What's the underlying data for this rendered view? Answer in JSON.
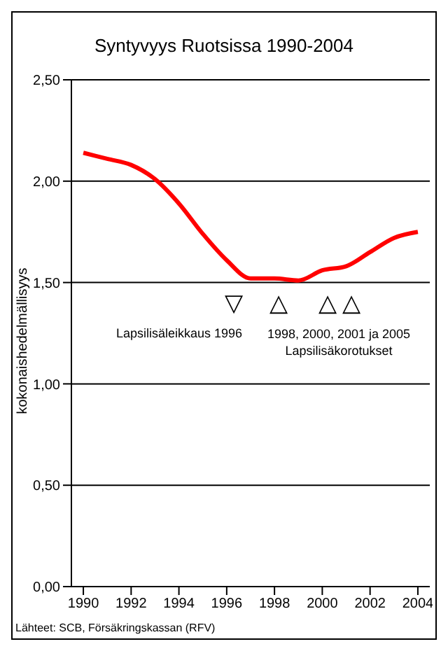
{
  "chart_data": {
    "type": "line",
    "title": "Syntyvyys Ruotsissa 1990-2004",
    "ylabel": "kokonaishedelmällisyys",
    "x": [
      1990,
      1991,
      1992,
      1993,
      1994,
      1995,
      1996,
      1997,
      1998,
      1999,
      2000,
      2001,
      2002,
      2003,
      2004
    ],
    "series": [
      {
        "color": "#ff0000",
        "values": [
          2.14,
          2.11,
          2.08,
          2.01,
          1.89,
          1.74,
          1.61,
          1.52,
          1.52,
          1.51,
          1.56,
          1.58,
          1.65,
          1.72,
          1.75
        ]
      }
    ],
    "xlim": [
      1989.5,
      2004.5
    ],
    "xticks": [
      1990,
      1992,
      1994,
      1996,
      1998,
      2000,
      2002,
      2004
    ],
    "ylim": [
      0,
      2.5
    ],
    "yticks": [
      {
        "value": 0,
        "label": "0,00"
      },
      {
        "value": 0.5,
        "label": "0,50"
      },
      {
        "value": 1,
        "label": "1,00"
      },
      {
        "value": 1.5,
        "label": "1,50"
      },
      {
        "value": 2,
        "label": "2,00"
      },
      {
        "value": 2.5,
        "label": "2,50"
      }
    ],
    "grid": "y",
    "legend": false,
    "marker": "none",
    "line_style": "solid",
    "annotations": [
      "▽",
      "△",
      "△",
      "△",
      "Lapsilisäleikkaus 1996",
      "1998, 2000, 2001 ja 2005\nLapsilisäkorotukset",
      "Lähteet: SCB, Försäkringskassan (RFV)"
    ]
  }
}
